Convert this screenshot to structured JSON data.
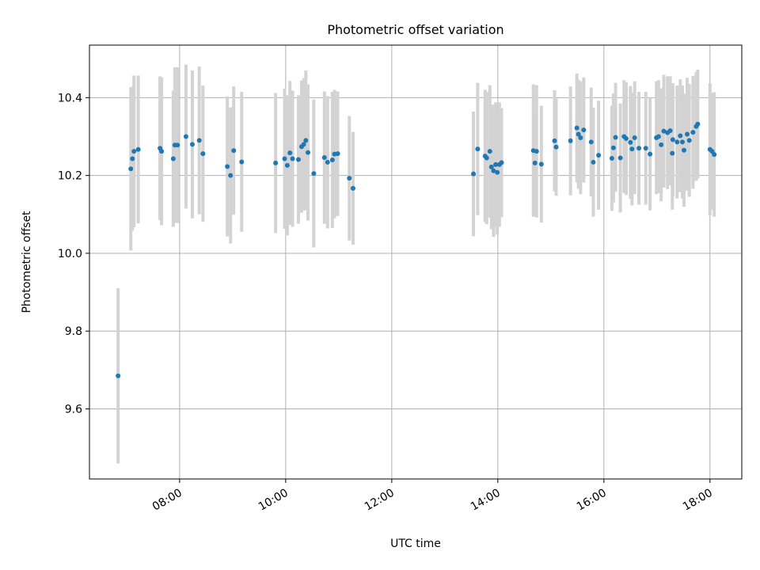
{
  "chart_data": {
    "type": "scatter",
    "title": "Photometric offset variation",
    "xlabel": "UTC time",
    "ylabel": "Photometric offset",
    "x_units": "UTC hours",
    "xlim": [
      6.3,
      18.6
    ],
    "ylim": [
      9.42,
      10.535
    ],
    "x_ticks": [
      8,
      10,
      12,
      14,
      16,
      18
    ],
    "x_tick_labels": [
      "08:00",
      "10:00",
      "12:00",
      "14:00",
      "16:00",
      "18:00"
    ],
    "y_ticks": [
      9.6,
      9.8,
      10.0,
      10.2,
      10.4
    ],
    "y_tick_labels": [
      "9.6",
      "9.8",
      "10.0",
      "10.2",
      "10.4"
    ],
    "grid": true,
    "marker_color": "#1f77b4",
    "errorbar_color": "#d3d3d3",
    "points": [
      [
        6.84,
        9.685,
        0.225
      ],
      [
        7.08,
        10.217,
        0.21
      ],
      [
        7.11,
        10.243,
        0.185
      ],
      [
        7.14,
        10.262,
        0.195
      ],
      [
        7.22,
        10.267,
        0.19
      ],
      [
        7.63,
        10.27,
        0.185
      ],
      [
        7.66,
        10.262,
        0.19
      ],
      [
        7.88,
        10.243,
        0.175
      ],
      [
        7.91,
        10.278,
        0.2
      ],
      [
        7.96,
        10.278,
        0.2
      ],
      [
        8.12,
        10.3,
        0.185
      ],
      [
        8.24,
        10.28,
        0.19
      ],
      [
        8.37,
        10.29,
        0.19
      ],
      [
        8.44,
        10.256,
        0.175
      ],
      [
        8.9,
        10.223,
        0.18
      ],
      [
        8.96,
        10.2,
        0.175
      ],
      [
        9.02,
        10.264,
        0.165
      ],
      [
        9.17,
        10.235,
        0.18
      ],
      [
        9.81,
        10.232,
        0.18
      ],
      [
        9.98,
        10.243,
        0.18
      ],
      [
        10.03,
        10.226,
        0.18
      ],
      [
        10.08,
        10.258,
        0.185
      ],
      [
        10.13,
        10.243,
        0.175
      ],
      [
        10.24,
        10.241,
        0.165
      ],
      [
        10.3,
        10.274,
        0.17
      ],
      [
        10.34,
        10.28,
        0.17
      ],
      [
        10.38,
        10.29,
        0.18
      ],
      [
        10.42,
        10.259,
        0.175
      ],
      [
        10.53,
        10.205,
        0.19
      ],
      [
        10.73,
        10.246,
        0.17
      ],
      [
        10.79,
        10.234,
        0.17
      ],
      [
        10.88,
        10.24,
        0.175
      ],
      [
        10.92,
        10.255,
        0.165
      ],
      [
        10.98,
        10.256,
        0.16
      ],
      [
        11.2,
        10.193,
        0.16
      ],
      [
        11.27,
        10.167,
        0.145
      ],
      [
        13.54,
        10.204,
        0.16
      ],
      [
        13.62,
        10.268,
        0.17
      ],
      [
        13.76,
        10.25,
        0.17
      ],
      [
        13.79,
        10.245,
        0.17
      ],
      [
        13.85,
        10.262,
        0.17
      ],
      [
        13.88,
        10.222,
        0.16
      ],
      [
        13.92,
        10.212,
        0.17
      ],
      [
        13.96,
        10.228,
        0.16
      ],
      [
        13.99,
        10.208,
        0.16
      ],
      [
        14.03,
        10.228,
        0.16
      ],
      [
        14.07,
        10.233,
        0.14
      ],
      [
        14.67,
        10.264,
        0.17
      ],
      [
        14.7,
        10.232,
        0.13
      ],
      [
        14.73,
        10.262,
        0.17
      ],
      [
        14.82,
        10.229,
        0.15
      ],
      [
        15.07,
        10.289,
        0.13
      ],
      [
        15.1,
        10.273,
        0.125
      ],
      [
        15.37,
        10.289,
        0.14
      ],
      [
        15.49,
        10.322,
        0.14
      ],
      [
        15.52,
        10.306,
        0.14
      ],
      [
        15.56,
        10.297,
        0.145
      ],
      [
        15.62,
        10.317,
        0.135
      ],
      [
        15.76,
        10.286,
        0.14
      ],
      [
        15.8,
        10.234,
        0.14
      ],
      [
        15.9,
        10.252,
        0.14
      ],
      [
        16.15,
        10.244,
        0.135
      ],
      [
        16.18,
        10.271,
        0.14
      ],
      [
        16.22,
        10.298,
        0.14
      ],
      [
        16.31,
        10.245,
        0.14
      ],
      [
        16.38,
        10.3,
        0.145
      ],
      [
        16.42,
        10.295,
        0.145
      ],
      [
        16.5,
        10.285,
        0.145
      ],
      [
        16.53,
        10.268,
        0.145
      ],
      [
        16.58,
        10.297,
        0.145
      ],
      [
        16.66,
        10.27,
        0.145
      ],
      [
        16.79,
        10.27,
        0.145
      ],
      [
        16.87,
        10.255,
        0.145
      ],
      [
        16.99,
        10.297,
        0.145
      ],
      [
        17.03,
        10.3,
        0.145
      ],
      [
        17.08,
        10.279,
        0.145
      ],
      [
        17.13,
        10.314,
        0.145
      ],
      [
        17.2,
        10.31,
        0.145
      ],
      [
        17.25,
        10.315,
        0.14
      ],
      [
        17.29,
        10.257,
        0.145
      ],
      [
        17.3,
        10.292,
        0.145
      ],
      [
        17.38,
        10.286,
        0.145
      ],
      [
        17.44,
        10.302,
        0.145
      ],
      [
        17.48,
        10.286,
        0.145
      ],
      [
        17.51,
        10.265,
        0.145
      ],
      [
        17.57,
        10.306,
        0.145
      ],
      [
        17.61,
        10.29,
        0.145
      ],
      [
        17.68,
        10.311,
        0.145
      ],
      [
        17.74,
        10.326,
        0.14
      ],
      [
        17.77,
        10.332,
        0.14
      ],
      [
        18.0,
        10.267,
        0.17
      ],
      [
        18.04,
        10.262,
        0.15
      ],
      [
        18.08,
        10.254,
        0.16
      ]
    ]
  }
}
